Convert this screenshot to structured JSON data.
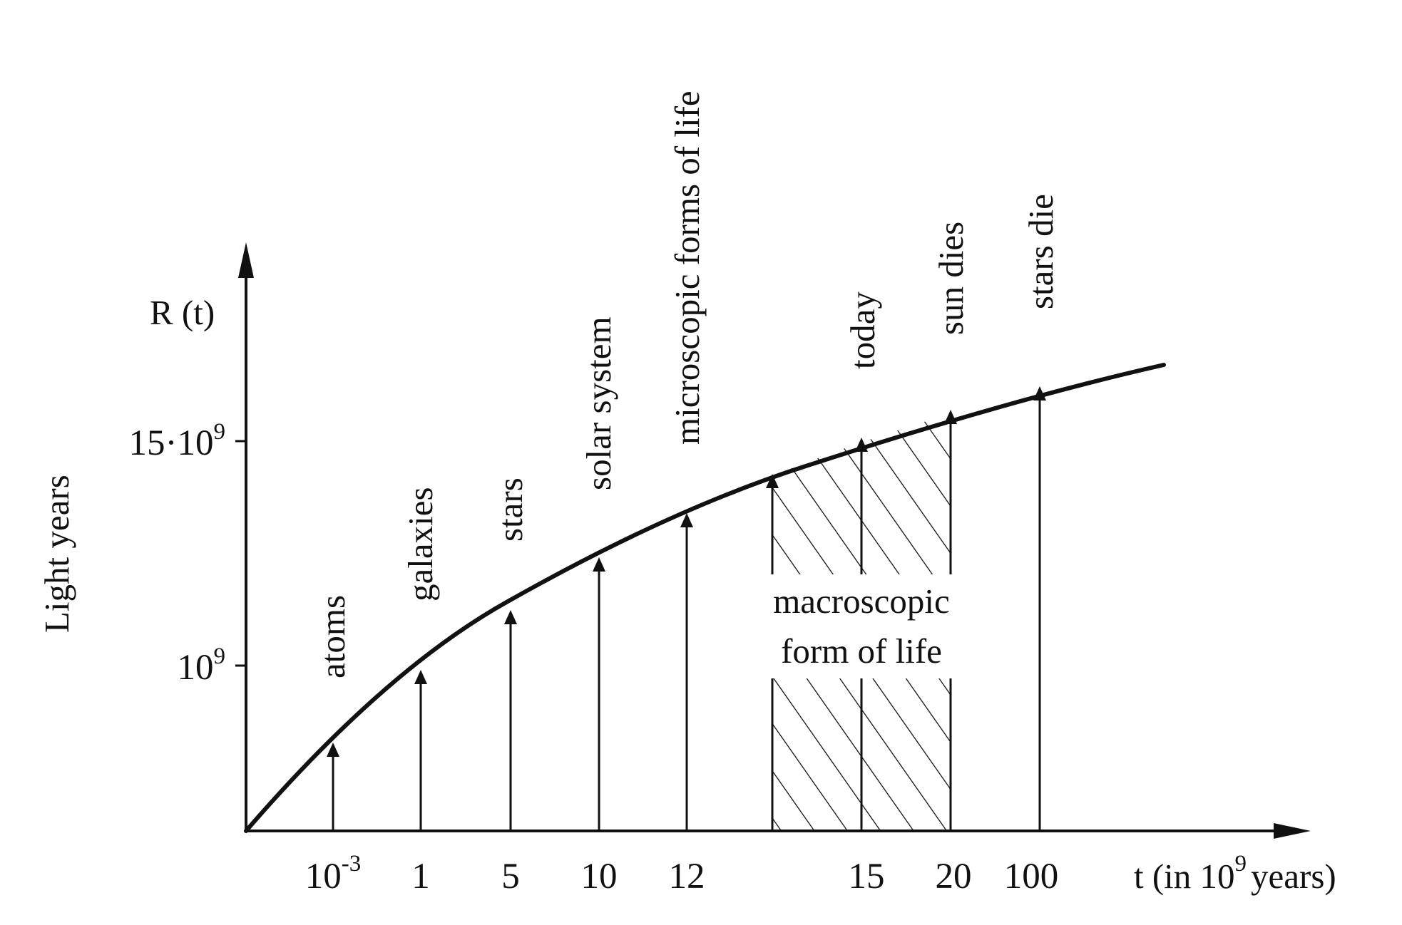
{
  "diagram": {
    "y_axis_symbol": "R (t)",
    "y_axis_label": "Light years",
    "x_axis_label_prefix": "t (in 10",
    "x_axis_label_exp": "9",
    "x_axis_label_suffix": "years)",
    "y_ticks": [
      {
        "base": "15·10",
        "exp": "9"
      },
      {
        "base": "10",
        "exp": "9"
      }
    ],
    "x_ticks": [
      {
        "base": "10",
        "exp": "-3"
      },
      {
        "base": "1",
        "exp": ""
      },
      {
        "base": "5",
        "exp": ""
      },
      {
        "base": "10",
        "exp": ""
      },
      {
        "base": "12",
        "exp": ""
      },
      {
        "base": "15",
        "exp": ""
      },
      {
        "base": "20",
        "exp": ""
      },
      {
        "base": "100",
        "exp": ""
      }
    ],
    "events": [
      "atoms",
      "galaxies",
      "stars",
      "solar system",
      "microscopic forms of life",
      "today",
      "sun dies",
      "stars die"
    ],
    "macroscopic_label_line1": "macroscopic",
    "macroscopic_label_line2": "form of life",
    "colors": {
      "ink": "#111111",
      "background": "#ffffff"
    }
  }
}
